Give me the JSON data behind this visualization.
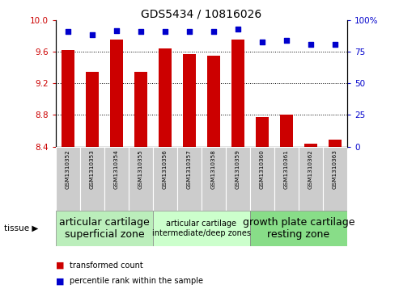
{
  "title": "GDS5434 / 10816026",
  "samples": [
    "GSM1310352",
    "GSM1310353",
    "GSM1310354",
    "GSM1310355",
    "GSM1310356",
    "GSM1310357",
    "GSM1310358",
    "GSM1310359",
    "GSM1310360",
    "GSM1310361",
    "GSM1310362",
    "GSM1310363"
  ],
  "transformed_count": [
    9.62,
    9.35,
    9.76,
    9.35,
    9.65,
    9.57,
    9.55,
    9.76,
    8.77,
    8.81,
    8.44,
    8.49
  ],
  "percentile_rank": [
    91,
    89,
    92,
    91,
    91,
    91,
    91,
    93,
    83,
    84,
    81,
    81
  ],
  "ylim_left": [
    8.4,
    10.0
  ],
  "ylim_right": [
    0,
    100
  ],
  "yticks_left": [
    8.4,
    8.8,
    9.2,
    9.6,
    10.0
  ],
  "yticks_right": [
    0,
    25,
    50,
    75,
    100
  ],
  "bar_color": "#cc0000",
  "dot_color": "#0000cc",
  "tissue_groups": [
    {
      "label": "articular cartilage\nsuperficial zone",
      "start": 0,
      "end": 4,
      "color": "#bbeebb",
      "fontsize": 9
    },
    {
      "label": "articular cartilage\nintermediate/deep zones",
      "start": 4,
      "end": 8,
      "color": "#ccffcc",
      "fontsize": 7
    },
    {
      "label": "growth plate cartilage\nresting zone",
      "start": 8,
      "end": 12,
      "color": "#88dd88",
      "fontsize": 9
    }
  ],
  "xlabel_tissue": "tissue",
  "legend_bar_label": "transformed count",
  "legend_dot_label": "percentile rank within the sample",
  "tick_label_color_left": "#cc0000",
  "tick_label_color_right": "#0000cc"
}
